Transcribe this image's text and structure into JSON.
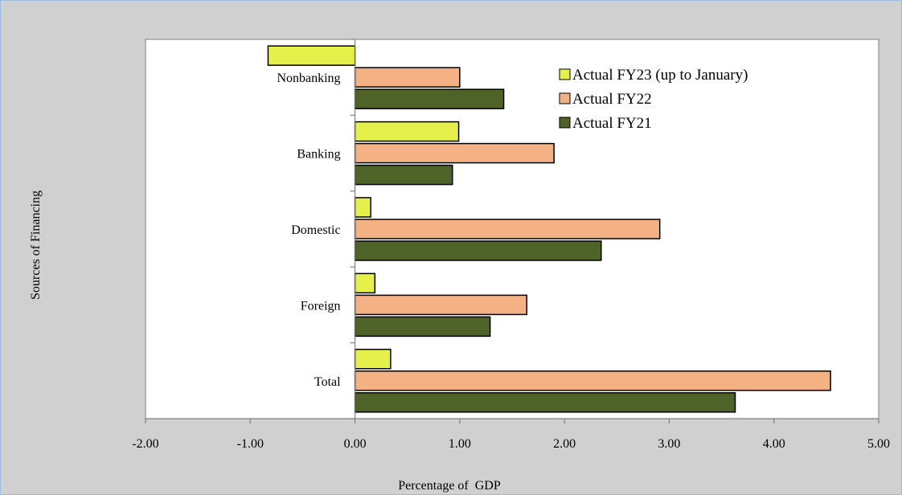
{
  "chart_data": {
    "type": "bar",
    "orientation": "horizontal",
    "categories": [
      "Nonbanking",
      "Banking",
      "Domestic",
      "Foreign",
      "Total"
    ],
    "series": [
      {
        "name": "Actual FY23 (up to January)",
        "color": "#e6f04a",
        "values": [
          -0.83,
          0.99,
          0.15,
          0.19,
          0.34
        ]
      },
      {
        "name": "Actual FY22",
        "color": "#f4b183",
        "values": [
          1.0,
          1.9,
          2.91,
          1.64,
          4.54
        ]
      },
      {
        "name": "Actual FY21",
        "color": "#4f6228",
        "values": [
          1.42,
          0.93,
          2.35,
          1.29,
          3.63
        ]
      }
    ],
    "xlim": [
      -2,
      5
    ],
    "xticks": [
      "-2.00",
      "-1.00",
      "0.00",
      "1.00",
      "2.00",
      "3.00",
      "4.00",
      "5.00"
    ],
    "xtick_values": [
      -2,
      -1,
      0,
      1,
      2,
      3,
      4,
      5
    ],
    "xlabel": "Percentage of  GDP",
    "ylabel": "Sources of Financing",
    "title": "",
    "legend_position": "top-right",
    "grid": false
  }
}
